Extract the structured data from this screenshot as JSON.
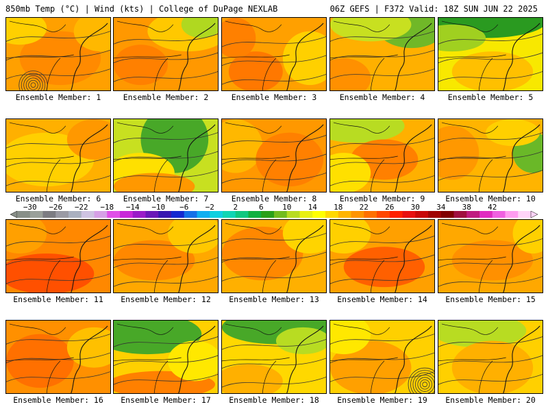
{
  "header": {
    "left": "850mb Temp (°C) | Wind (kts) | College of DuPage NEXLAB",
    "right": "06Z GEFS | F372 Valid: 18Z SUN JUN 22 2025"
  },
  "colorbar": {
    "labels": [
      "−30",
      "−26",
      "−22",
      "−18",
      "−14",
      "−10",
      "−6",
      "−2",
      "2",
      "6",
      "10",
      "14",
      "18",
      "22",
      "26",
      "30",
      "34",
      "38",
      "42"
    ],
    "colors": [
      "#888f88",
      "#9aa09a",
      "#7c7c82",
      "#9a9aa4",
      "#aab0c0",
      "#cfc3e2",
      "#d6a0e6",
      "#e050e8",
      "#c828d8",
      "#9a1cc8",
      "#6a18b8",
      "#3818b0",
      "#1428d0",
      "#1470e8",
      "#10aef0",
      "#10d0e0",
      "#10d6b4",
      "#10c880",
      "#10b040",
      "#2aa018",
      "#72bc1e",
      "#b8dc22",
      "#e8f012",
      "#ffff00",
      "#ffd800",
      "#ffb400",
      "#ff9400",
      "#ff7000",
      "#ff4800",
      "#ff2000",
      "#e81010",
      "#c80808",
      "#a00404",
      "#800000",
      "#a01040",
      "#c01c80",
      "#e02cc0",
      "#f060e0",
      "#ff9cf0",
      "#ffd4f8"
    ]
  },
  "members": [
    {
      "label": "Ensemble Member: 1",
      "base": "#ffa000",
      "blobs": [
        [
          "#ff8a00",
          80,
          60,
          60,
          40
        ],
        [
          "#ffd000",
          20,
          15,
          40,
          25
        ],
        [
          "#ffb800",
          140,
          20,
          40,
          30
        ]
      ],
      "lows": [
        [
          40,
          100,
          6
        ]
      ]
    },
    {
      "label": "Ensemble Member: 2",
      "base": "#ff9800",
      "blobs": [
        [
          "#ffc800",
          110,
          20,
          60,
          30
        ],
        [
          "#b0d820",
          130,
          10,
          30,
          20
        ],
        [
          "#ff8000",
          40,
          70,
          40,
          30
        ]
      ],
      "lows": []
    },
    {
      "label": "Ensemble Member: 3",
      "base": "#ffa000",
      "blobs": [
        [
          "#ff7800",
          50,
          80,
          40,
          30
        ],
        [
          "#ffd000",
          130,
          60,
          40,
          40
        ],
        [
          "#ff8000",
          20,
          30,
          30,
          30
        ]
      ],
      "lows": []
    },
    {
      "label": "Ensemble Member: 4",
      "base": "#ffb000",
      "blobs": [
        [
          "#70b828",
          120,
          15,
          50,
          30
        ],
        [
          "#c8e020",
          60,
          10,
          60,
          25
        ],
        [
          "#ff9000",
          20,
          90,
          40,
          30
        ]
      ],
      "lows": []
    },
    {
      "label": "Ensemble Member: 5",
      "base": "#f8e800",
      "blobs": [
        [
          "#2a9a20",
          70,
          5,
          90,
          25
        ],
        [
          "#a0d020",
          20,
          30,
          50,
          20
        ],
        [
          "#ffc000",
          80,
          80,
          60,
          30
        ]
      ],
      "lows": []
    },
    {
      "label": "Ensemble Member: 6",
      "base": "#ffb000",
      "blobs": [
        [
          "#ffd000",
          60,
          60,
          70,
          40
        ],
        [
          "#ff9800",
          130,
          30,
          40,
          30
        ]
      ],
      "lows": []
    },
    {
      "label": "Ensemble Member: 7",
      "base": "#c8e020",
      "blobs": [
        [
          "#48a828",
          90,
          30,
          50,
          50
        ],
        [
          "#ffe000",
          40,
          80,
          50,
          30
        ],
        [
          "#ff9800",
          60,
          100,
          60,
          20
        ]
      ],
      "lows": []
    },
    {
      "label": "Ensemble Member: 8",
      "base": "#ff9800",
      "blobs": [
        [
          "#ffb800",
          20,
          40,
          40,
          40
        ],
        [
          "#ff8000",
          100,
          60,
          50,
          40
        ]
      ],
      "lows": []
    },
    {
      "label": "Ensemble Member: 9",
      "base": "#ffb000",
      "blobs": [
        [
          "#b8dc22",
          40,
          10,
          70,
          25
        ],
        [
          "#ff8000",
          80,
          60,
          50,
          30
        ],
        [
          "#ffe000",
          20,
          80,
          40,
          30
        ]
      ],
      "lows": []
    },
    {
      "label": "Ensemble Member: 10",
      "base": "#ffb400",
      "blobs": [
        [
          "#6ab828",
          140,
          50,
          30,
          30
        ],
        [
          "#ff9800",
          20,
          50,
          40,
          40
        ],
        [
          "#ffd000",
          110,
          20,
          40,
          20
        ]
      ],
      "lows": []
    },
    {
      "label": "Ensemble Member: 11",
      "base": "#ff8800",
      "blobs": [
        [
          "#ff5000",
          60,
          80,
          70,
          30
        ],
        [
          "#ffa000",
          20,
          20,
          40,
          30
        ]
      ],
      "lows": []
    },
    {
      "label": "Ensemble Member: 12",
      "base": "#ffa800",
      "blobs": [
        [
          "#ff8800",
          60,
          60,
          60,
          30
        ],
        [
          "#ffc800",
          120,
          20,
          40,
          30
        ]
      ],
      "lows": []
    },
    {
      "label": "Ensemble Member: 13",
      "base": "#ffb000",
      "blobs": [
        [
          "#ff8800",
          60,
          50,
          60,
          40
        ],
        [
          "#ffd400",
          130,
          20,
          40,
          30
        ]
      ],
      "lows": []
    },
    {
      "label": "Ensemble Member: 14",
      "base": "#ffa000",
      "blobs": [
        [
          "#ff6000",
          80,
          70,
          60,
          30
        ],
        [
          "#ffd000",
          20,
          20,
          40,
          30
        ]
      ],
      "lows": []
    },
    {
      "label": "Ensemble Member: 15",
      "base": "#ffa800",
      "blobs": [
        [
          "#ff9000",
          80,
          60,
          60,
          30
        ],
        [
          "#ffd000",
          140,
          20,
          30,
          30
        ]
      ],
      "lows": []
    },
    {
      "label": "Ensemble Member: 16",
      "base": "#ff9000",
      "blobs": [
        [
          "#ff7000",
          50,
          60,
          50,
          40
        ],
        [
          "#ffc000",
          130,
          40,
          40,
          30
        ]
      ],
      "lows": []
    },
    {
      "label": "Ensemble Member: 17",
      "base": "#ffd000",
      "blobs": [
        [
          "#48a828",
          50,
          20,
          80,
          30
        ],
        [
          "#ff8000",
          70,
          95,
          80,
          20
        ],
        [
          "#ffe800",
          120,
          60,
          40,
          30
        ]
      ],
      "lows": []
    },
    {
      "label": "Ensemble Member: 18",
      "base": "#ffd800",
      "blobs": [
        [
          "#48a828",
          80,
          10,
          80,
          25
        ],
        [
          "#b8dc22",
          120,
          30,
          40,
          20
        ],
        [
          "#ffb000",
          40,
          90,
          50,
          25
        ]
      ],
      "lows": []
    },
    {
      "label": "Ensemble Member: 19",
      "base": "#ffd000",
      "blobs": [
        [
          "#ffa000",
          60,
          70,
          60,
          40
        ],
        [
          "#ffe800",
          20,
          20,
          40,
          30
        ]
      ],
      "lows": [
        [
          140,
          95,
          7
        ]
      ]
    },
    {
      "label": "Ensemble Member: 20",
      "base": "#ffd000",
      "blobs": [
        [
          "#b8dc22",
          60,
          15,
          70,
          25
        ],
        [
          "#ffb000",
          80,
          70,
          60,
          40
        ]
      ],
      "lows": []
    }
  ]
}
